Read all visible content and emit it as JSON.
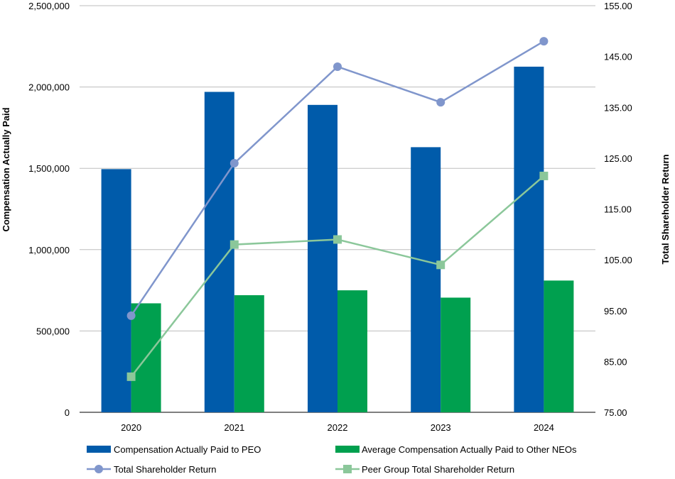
{
  "chart_data": {
    "type": "bar",
    "categories": [
      "2020",
      "2021",
      "2022",
      "2023",
      "2024"
    ],
    "ylabel": "Compensation Actually Paid",
    "y2label": "Total Shareholder Return",
    "ylim": [
      0,
      2500000
    ],
    "y2lim": [
      75,
      155
    ],
    "yticks": [
      "0",
      "500,000",
      "1,000,000",
      "1,500,000",
      "2,000,000",
      "2,500,000"
    ],
    "y2ticks": [
      "75.00",
      "85.00",
      "95.00",
      "105.00",
      "115.00",
      "125.00",
      "135.00",
      "145.00",
      "155.00"
    ],
    "grid": true,
    "legend_position": "bottom",
    "series": [
      {
        "name": "Compensation Actually Paid to PEO",
        "type": "bar",
        "axis": "left",
        "color": "#005BAA",
        "values": [
          1495000,
          1970000,
          1890000,
          1630000,
          2125000
        ]
      },
      {
        "name": "Average Compensation Actually Paid to Other NEOs",
        "type": "bar",
        "axis": "left",
        "color": "#00A04F",
        "values": [
          670000,
          720000,
          750000,
          705000,
          810000
        ]
      },
      {
        "name": "Total Shareholder Return",
        "type": "line",
        "axis": "right",
        "color": "#8096CC",
        "marker": "circle",
        "values": [
          94.0,
          124.0,
          143.0,
          136.0,
          148.0
        ]
      },
      {
        "name": "Peer Group Total Shareholder Return",
        "type": "line",
        "axis": "right",
        "color": "#8BC79A",
        "marker": "square",
        "values": [
          82.0,
          108.0,
          109.0,
          104.0,
          121.5
        ]
      }
    ]
  }
}
